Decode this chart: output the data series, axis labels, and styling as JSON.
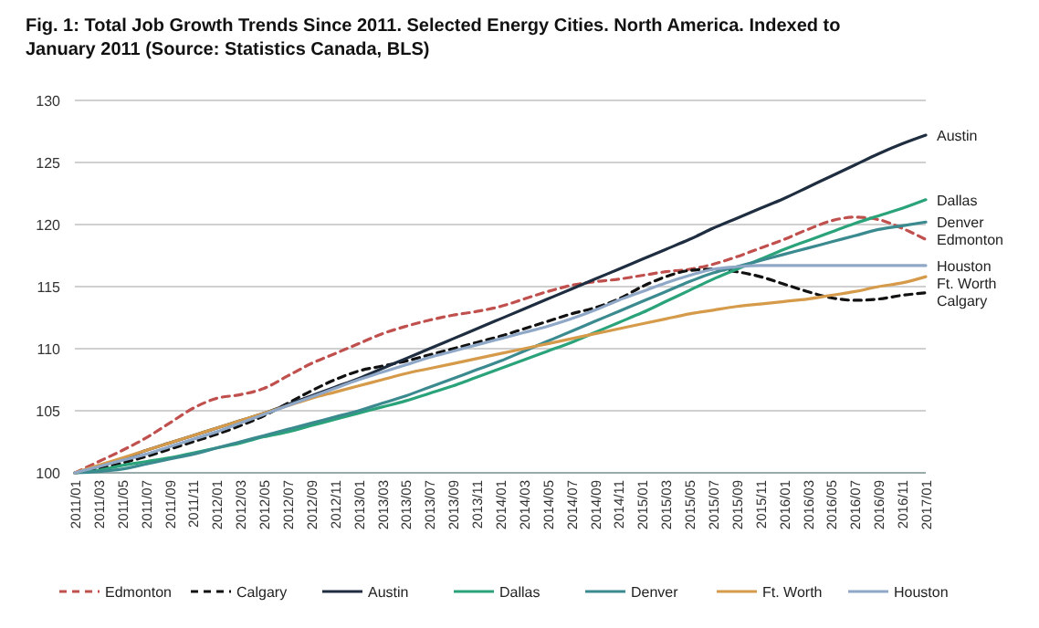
{
  "chart_data": {
    "type": "line",
    "title": "Fig. 1: Total Job Growth Trends Since 2011.  Selected Energy Cities. North America. Indexed to January 2011 (Source: Statistics Canada, BLS)",
    "categories": [
      "2011/01",
      "2011/03",
      "2011/05",
      "2011/07",
      "2011/09",
      "2011/11",
      "2012/01",
      "2012/03",
      "2012/05",
      "2012/07",
      "2012/09",
      "2012/11",
      "2013/01",
      "2013/03",
      "2013/05",
      "2013/07",
      "2013/09",
      "2013/11",
      "2014/01",
      "2014/03",
      "2014/05",
      "2014/07",
      "2014/09",
      "2014/11",
      "2015/01",
      "2015/03",
      "2015/05",
      "2015/07",
      "2015/09",
      "2015/11",
      "2016/01",
      "2016/03",
      "2016/05",
      "2016/07",
      "2016/09",
      "2016/11",
      "2017/01"
    ],
    "series": [
      {
        "name": "Edmonton",
        "color": "#c0504d",
        "line_style": "dashed",
        "values": [
          100,
          100.9,
          101.8,
          102.8,
          104,
          105.2,
          106,
          106.3,
          106.8,
          107.8,
          108.8,
          109.6,
          110.4,
          111.2,
          111.8,
          112.3,
          112.7,
          113,
          113.4,
          114,
          114.6,
          115.1,
          115.4,
          115.6,
          115.9,
          116.2,
          116.4,
          116.8,
          117.4,
          118.1,
          118.8,
          119.6,
          120.3,
          120.6,
          120.4,
          119.7,
          118.8
        ]
      },
      {
        "name": "Calgary",
        "color": "#111111",
        "line_style": "dashed",
        "values": [
          100,
          100.3,
          100.8,
          101.3,
          101.9,
          102.5,
          103.1,
          103.8,
          104.6,
          105.6,
          106.6,
          107.5,
          108.2,
          108.6,
          109,
          109.5,
          110,
          110.5,
          111,
          111.6,
          112.2,
          112.8,
          113.3,
          114,
          115,
          115.8,
          116.3,
          116.4,
          116.2,
          115.8,
          115.2,
          114.6,
          114.1,
          113.9,
          114,
          114.3,
          114.5
        ]
      },
      {
        "name": "Austin",
        "color": "#1f2d40",
        "line_style": "solid",
        "values": [
          100,
          100.5,
          101.1,
          101.8,
          102.4,
          103,
          103.6,
          104.2,
          104.8,
          105.5,
          106.2,
          106.9,
          107.6,
          108.4,
          109.2,
          110,
          110.8,
          111.6,
          112.4,
          113.2,
          114,
          114.8,
          115.6,
          116.4,
          117.2,
          118,
          118.8,
          119.7,
          120.5,
          121.3,
          122.1,
          123,
          123.9,
          124.8,
          125.7,
          126.5,
          127.2
        ]
      },
      {
        "name": "Dallas",
        "color": "#2aa37a",
        "line_style": "solid",
        "values": [
          100,
          100.2,
          100.6,
          100.9,
          101.2,
          101.6,
          102,
          102.4,
          102.9,
          103.3,
          103.8,
          104.3,
          104.8,
          105.3,
          105.8,
          106.4,
          107,
          107.7,
          108.4,
          109.1,
          109.8,
          110.5,
          111.3,
          112.1,
          112.9,
          113.8,
          114.7,
          115.6,
          116.4,
          117.2,
          118,
          118.7,
          119.4,
          120.1,
          120.7,
          121.3,
          122
        ]
      },
      {
        "name": "Denver",
        "color": "#3a8a8f",
        "line_style": "solid",
        "values": [
          100,
          100.1,
          100.3,
          100.7,
          101.1,
          101.5,
          102,
          102.5,
          103,
          103.5,
          104,
          104.5,
          105,
          105.6,
          106.2,
          106.9,
          107.6,
          108.3,
          109,
          109.8,
          110.6,
          111.4,
          112.2,
          113,
          113.8,
          114.6,
          115.4,
          116.1,
          116.6,
          117.1,
          117.6,
          118.1,
          118.6,
          119.1,
          119.6,
          119.9,
          120.2
        ]
      },
      {
        "name": "Ft. Worth",
        "color": "#d59b4a",
        "line_style": "solid",
        "values": [
          100,
          100.6,
          101.2,
          101.8,
          102.4,
          103,
          103.6,
          104.2,
          104.8,
          105.4,
          106,
          106.5,
          107,
          107.5,
          108,
          108.4,
          108.8,
          109.2,
          109.6,
          110,
          110.4,
          110.8,
          111.2,
          111.6,
          112,
          112.4,
          112.8,
          113.1,
          113.4,
          113.6,
          113.8,
          114,
          114.3,
          114.6,
          115,
          115.3,
          115.8
        ]
      },
      {
        "name": "Houston",
        "color": "#8fa8c8",
        "line_style": "solid",
        "values": [
          100,
          100.5,
          101,
          101.5,
          102.1,
          102.7,
          103.3,
          104,
          104.7,
          105.4,
          106.1,
          106.8,
          107.5,
          108.1,
          108.7,
          109.3,
          109.8,
          110.3,
          110.8,
          111.3,
          111.8,
          112.4,
          113.1,
          113.9,
          114.6,
          115.3,
          115.9,
          116.4,
          116.6,
          116.7,
          116.7,
          116.7,
          116.7,
          116.7,
          116.7,
          116.7,
          116.7
        ]
      }
    ],
    "ylim": [
      100,
      130
    ],
    "yticks": [
      100,
      105,
      110,
      115,
      120,
      125,
      130
    ],
    "grid": "y",
    "legend": "bottom"
  }
}
